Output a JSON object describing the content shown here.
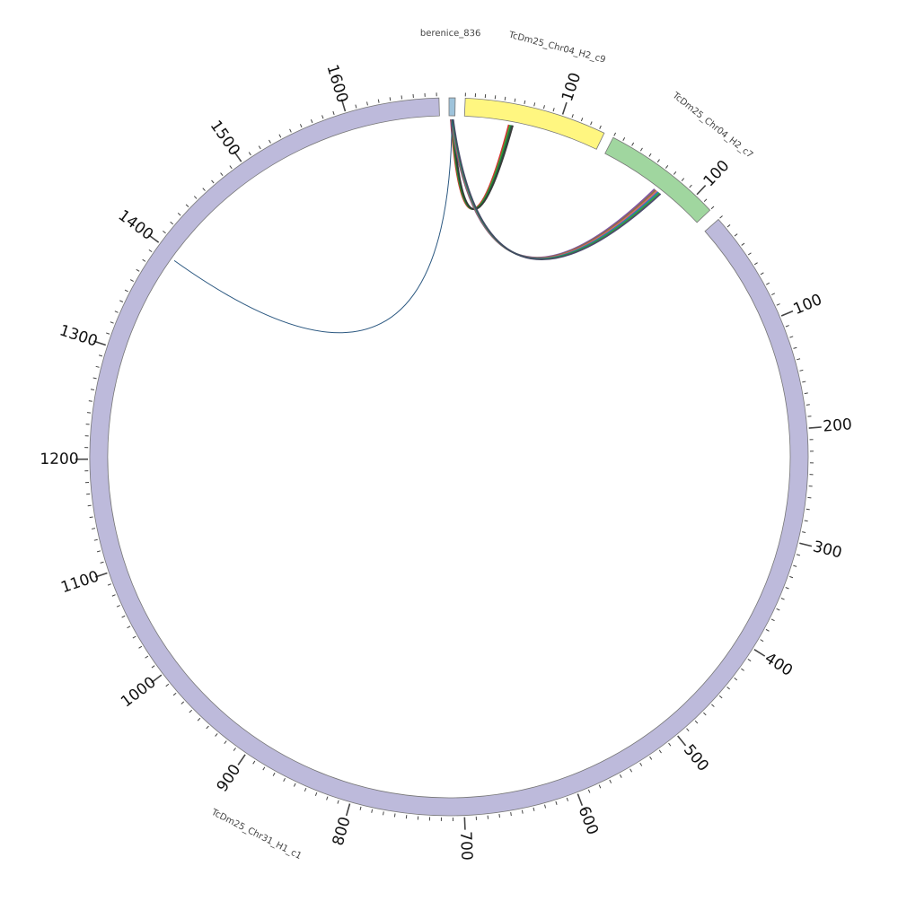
{
  "diagram": {
    "type": "circos",
    "units_per_tick_major": 100,
    "units_per_tick_minor": 10,
    "segments": [
      {
        "id": "berenice",
        "label": "berenice_836",
        "length": 8,
        "color": "#9ec3db",
        "tick_labels": []
      },
      {
        "id": "chr04-c9",
        "label": "TcDm25_Chr04_H2_c9",
        "length": 146,
        "color": "#fff680",
        "tick_labels": [
          "100"
        ]
      },
      {
        "id": "chr04-c7",
        "label": "TcDm25_Chr04_H2_c7",
        "length": 120,
        "color": "#a0d69f",
        "tick_labels": [
          "100"
        ]
      },
      {
        "id": "chr31-c1",
        "label": "TcDm25_Chr31_H1_c1",
        "length": 1682,
        "color": "#bdbadb",
        "tick_labels": [
          "100",
          "200",
          "300",
          "400",
          "500",
          "600",
          "700",
          "800",
          "900",
          "1000",
          "1100",
          "1200",
          "1300",
          "1400",
          "1500",
          "1600"
        ]
      }
    ],
    "links": [
      {
        "from": "berenice",
        "to": "chr04-c9",
        "colors": [
          "#d62728",
          "#2ca02c",
          "#1a5e3a",
          "#333333"
        ]
      },
      {
        "from": "berenice",
        "to": "chr04-c7",
        "colors": [
          "#7b4fa0",
          "#8c6d31",
          "#d6616b",
          "#1f77b4",
          "#2ca02c",
          "#444466"
        ]
      },
      {
        "from": "berenice",
        "to": "chr31-c1",
        "colors": [
          "#1f4e79"
        ]
      }
    ]
  }
}
